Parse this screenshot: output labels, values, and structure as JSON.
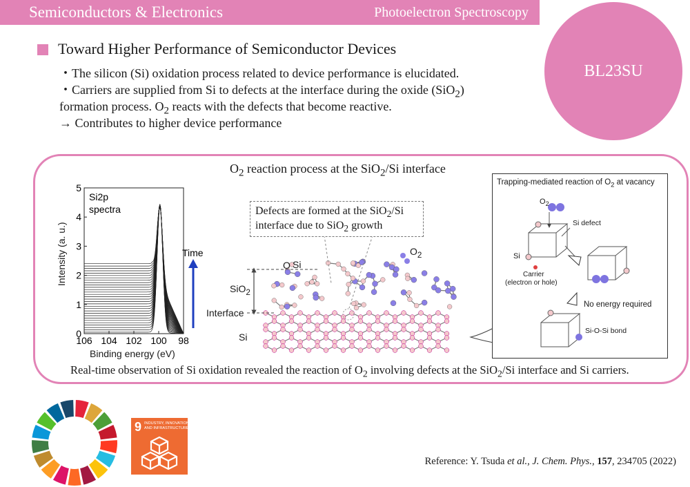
{
  "header": {
    "category": "Semiconductors & Electronics",
    "technique": "Photoelectron Spectroscopy"
  },
  "beamline": "BL23SU",
  "section_title": "Toward Higher Performance of Semiconductor Devices",
  "bullets": {
    "b1": "・The silicon (Si) oxidation process related to device performance is elucidated.",
    "b2_pre": "・Carriers are supplied from Si to defects at the interface during the oxide (SiO",
    "b2_sub": "2",
    "b2_post": ")",
    "b3_pre": "formation process. O",
    "b3_sub": "2",
    "b3_post": " reacts with the defects that become reactive.",
    "b4": "→ Contributes to higher device performance"
  },
  "figure": {
    "title_a": "O",
    "title_sub1": "2",
    "title_b": " reaction process at the SiO",
    "title_sub2": "2",
    "title_c": "/Si interface",
    "caption_a": "Real-time observation of Si oxidation revealed the reaction of O",
    "caption_sub1": "2",
    "caption_b": " involving defects at the SiO",
    "caption_sub2": "2",
    "caption_c": "/Si interface and Si carriers."
  },
  "chart_data": {
    "type": "line",
    "title": "Si2p spectra",
    "xlabel": "Binding energy (eV)",
    "ylabel": "Intensity (a. u.)",
    "xlim": [
      106,
      98
    ],
    "ylim": [
      0,
      5
    ],
    "x_ticks": [
      "106",
      "104",
      "102",
      "100",
      "98"
    ],
    "y_ticks": [
      "0",
      "1",
      "2",
      "3",
      "4",
      "5"
    ],
    "annotation": "Time",
    "series_count": 30,
    "peak_position": 99.9,
    "peak_height": 4.9,
    "bulk_level_start": 0.05,
    "bulk_level_end": 2.4
  },
  "lattice": {
    "callout_l1_a": "Defects are formed at the SiO",
    "callout_l1_sub": "2",
    "callout_l1_b": "/Si",
    "callout_l2_a": "interface due to SiO",
    "callout_l2_sub": "2",
    "callout_l2_b": " growth",
    "label_o": "O",
    "label_si": "Si",
    "label_o2": "O",
    "label_o2_sub": "2",
    "label_sio2": "SiO",
    "label_sio2_sub": "2",
    "label_interface": "Interface",
    "label_si_bulk": "Si"
  },
  "inset": {
    "title_a": "Trapping-mediated reaction of O",
    "title_sub": "2",
    "title_b": " at vacancy",
    "o2": "O",
    "o2_sub": "2",
    "si_defect": "Si defect",
    "si": "Si",
    "carrier_1": "Carrier",
    "carrier_2": "(electron or hole)",
    "no_energy": "No energy required",
    "bond": "Si-O-Si bond"
  },
  "sdg": {
    "number": "9",
    "label_1": "INDUSTRY, INNOVATION",
    "label_2": "AND INFRASTRUCTURE"
  },
  "reference": {
    "prefix": "Reference: Y. Tsuda ",
    "etal": "et al.",
    "sep": ", ",
    "journal": "J. Chem. Phys.",
    "sep2": ", ",
    "volume": "157",
    "rest": ", 234705 (2022)"
  },
  "colors": {
    "accent": "#e283b6",
    "si_atom": "#f4c9cc",
    "o_atom": "#8a7fe6",
    "arrow": "#1f3fbf",
    "sdg9": "#ee6b32"
  }
}
